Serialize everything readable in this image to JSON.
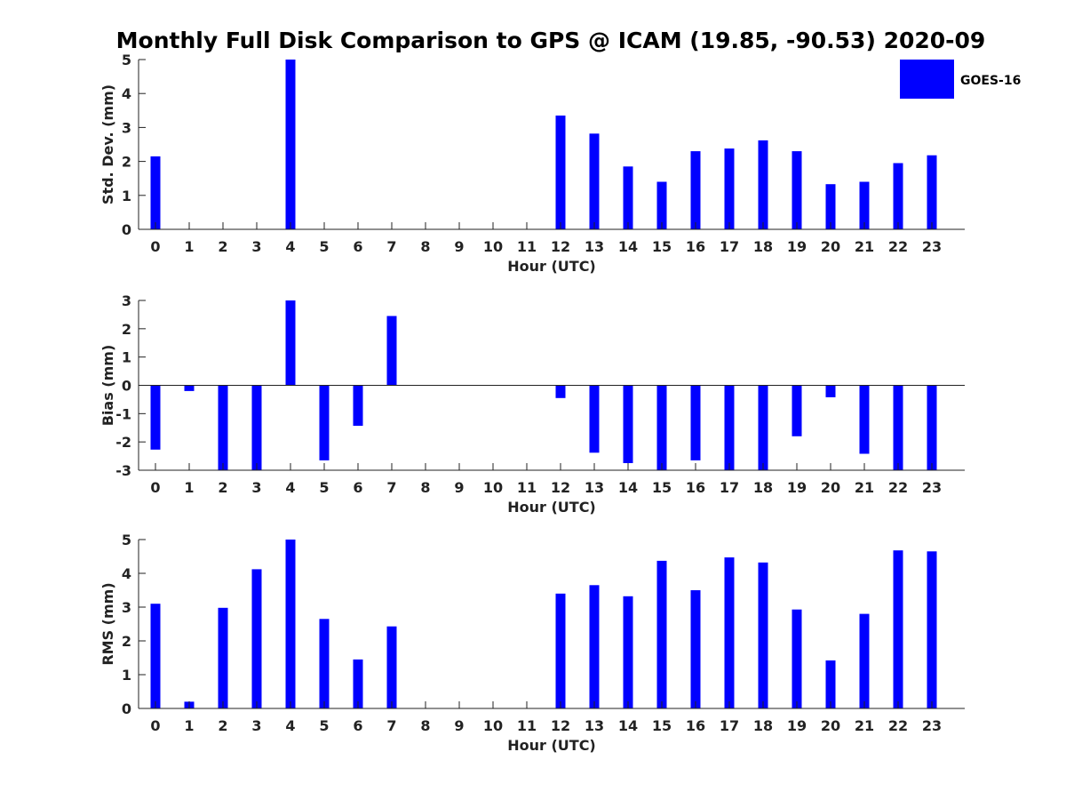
{
  "chart_data": [
    {
      "type": "bar",
      "title": "Monthly Full Disk Comparison to GPS @ ICAM (19.85, -90.53) 2020-09",
      "xlabel": "Hour (UTC)",
      "ylabel": "Std. Dev. (mm)",
      "categories": [
        "0",
        "1",
        "2",
        "3",
        "4",
        "5",
        "6",
        "7",
        "8",
        "9",
        "10",
        "11",
        "12",
        "13",
        "14",
        "15",
        "16",
        "17",
        "18",
        "19",
        "20",
        "21",
        "22",
        "23"
      ],
      "ylim": [
        0,
        5
      ],
      "yticks": [
        "0",
        "1",
        "2",
        "3",
        "4",
        "5"
      ],
      "grid": false,
      "legend_position": "top-right",
      "series": [
        {
          "name": "GOES-16",
          "color": "#0000ff",
          "values": [
            2.15,
            null,
            null,
            null,
            5.0,
            null,
            null,
            null,
            null,
            null,
            null,
            null,
            3.35,
            2.82,
            1.85,
            1.4,
            2.3,
            2.38,
            2.62,
            2.3,
            1.33,
            1.4,
            1.95,
            2.18
          ]
        }
      ]
    },
    {
      "type": "bar",
      "title": "",
      "xlabel": "Hour (UTC)",
      "ylabel": "Bias (mm)",
      "categories": [
        "0",
        "1",
        "2",
        "3",
        "4",
        "5",
        "6",
        "7",
        "8",
        "9",
        "10",
        "11",
        "12",
        "13",
        "14",
        "15",
        "16",
        "17",
        "18",
        "19",
        "20",
        "21",
        "22",
        "23"
      ],
      "ylim": [
        -3,
        3
      ],
      "yticks": [
        "-3",
        "-2",
        "-1",
        "0",
        "1",
        "2",
        "3"
      ],
      "grid": false,
      "series": [
        {
          "name": "GOES-16",
          "color": "#0000ff",
          "values": [
            -2.27,
            -0.2,
            -3.0,
            -3.0,
            3.0,
            -2.65,
            -1.43,
            2.45,
            null,
            null,
            null,
            null,
            -0.45,
            -2.38,
            -2.75,
            -3.0,
            -2.65,
            -3.0,
            -3.0,
            -1.8,
            -0.42,
            -2.42,
            -3.0,
            -3.0
          ]
        }
      ]
    },
    {
      "type": "bar",
      "title": "",
      "xlabel": "Hour (UTC)",
      "ylabel": "RMS (mm)",
      "categories": [
        "0",
        "1",
        "2",
        "3",
        "4",
        "5",
        "6",
        "7",
        "8",
        "9",
        "10",
        "11",
        "12",
        "13",
        "14",
        "15",
        "16",
        "17",
        "18",
        "19",
        "20",
        "21",
        "22",
        "23"
      ],
      "ylim": [
        0,
        5
      ],
      "yticks": [
        "0",
        "1",
        "2",
        "3",
        "4",
        "5"
      ],
      "grid": false,
      "series": [
        {
          "name": "GOES-16",
          "color": "#0000ff",
          "values": [
            3.1,
            0.2,
            2.98,
            4.12,
            5.0,
            2.65,
            1.45,
            2.43,
            null,
            null,
            null,
            null,
            3.4,
            3.65,
            3.32,
            4.37,
            3.5,
            4.47,
            4.32,
            2.93,
            1.42,
            2.8,
            4.68,
            4.65
          ]
        }
      ]
    }
  ]
}
